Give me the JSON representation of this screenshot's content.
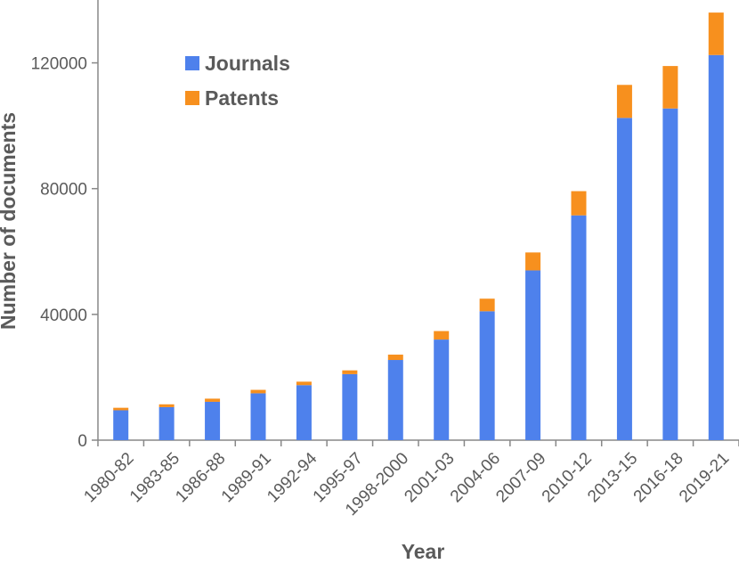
{
  "chart_data": {
    "type": "bar",
    "stacked": true,
    "title": "",
    "xlabel": "Year",
    "ylabel": "Number of documents",
    "ylim": [
      0,
      140000
    ],
    "yticks": [
      0,
      40000,
      80000,
      120000
    ],
    "ytick_labels": [
      "0",
      "40000",
      "80000",
      "120000"
    ],
    "categories": [
      "1980-82",
      "1983-85",
      "1986-88",
      "1989-91",
      "1992-94",
      "1995-97",
      "1998-2000",
      "2001-03",
      "2004-06",
      "2007-09",
      "2010-12",
      "2013-15",
      "2016-18",
      "2019-21"
    ],
    "series": [
      {
        "name": "Journals",
        "color": "#4e81ec",
        "values": [
          9500,
          10500,
          12200,
          14900,
          17500,
          21000,
          25500,
          32000,
          41000,
          54000,
          71500,
          102500,
          105500,
          122500
        ]
      },
      {
        "name": "Patents",
        "color": "#f7901e",
        "values": [
          800,
          900,
          1000,
          1100,
          1100,
          1200,
          1700,
          2700,
          4000,
          5700,
          7700,
          10500,
          13500,
          13500
        ]
      }
    ],
    "legend_position": "top-left",
    "grid": false
  }
}
